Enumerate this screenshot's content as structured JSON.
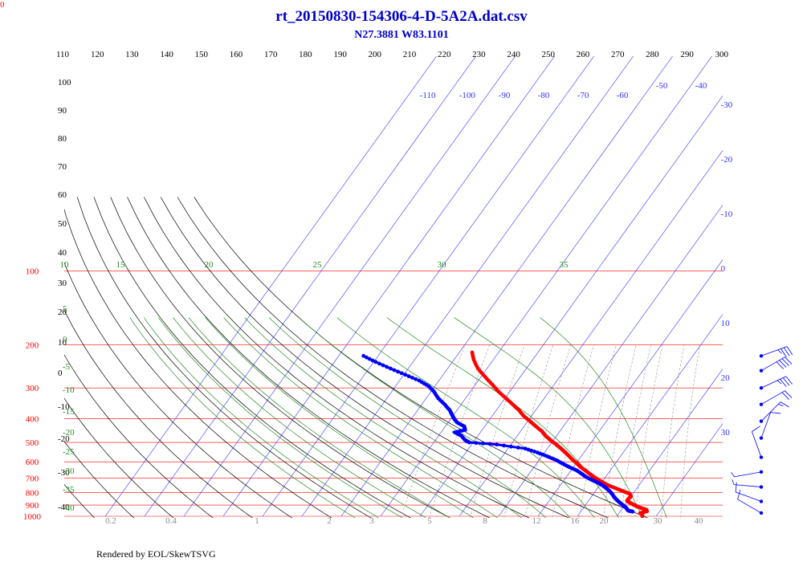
{
  "chart_data": {
    "type": "skew-t",
    "title": "rt_20150830-154306-4-D-5A2A.dat.csv",
    "subtitle": "N27.3881 W83.1101",
    "footer": "Rendered by EOL/SkewTSVG",
    "corner_label": "0",
    "pressure_ticks": [
      {
        "p": 100,
        "label": "100"
      },
      {
        "p": 200,
        "label": "200"
      },
      {
        "p": 300,
        "label": "300"
      },
      {
        "p": 400,
        "label": "400"
      },
      {
        "p": 500,
        "label": "500"
      },
      {
        "p": 600,
        "label": "600"
      },
      {
        "p": 700,
        "label": "700"
      },
      {
        "p": 800,
        "label": "800"
      },
      {
        "p": 900,
        "label": "900"
      },
      {
        "p": 1000,
        "label": "1000"
      }
    ],
    "isotherms": [
      {
        "t": -110,
        "label": "-110"
      },
      {
        "t": -100,
        "label": "-100"
      },
      {
        "t": -90,
        "label": "-90"
      },
      {
        "t": -80,
        "label": "-80"
      },
      {
        "t": -70,
        "label": "-70"
      },
      {
        "t": -60,
        "label": "-60"
      },
      {
        "t": -50,
        "label": "-50"
      },
      {
        "t": -40,
        "label": "-40"
      },
      {
        "t": -30,
        "label": "-30"
      },
      {
        "t": -20,
        "label": "-20"
      },
      {
        "t": -10,
        "label": "-10"
      },
      {
        "t": 0,
        "label": "0"
      },
      {
        "t": 10,
        "label": "10"
      },
      {
        "t": 20,
        "label": "20"
      },
      {
        "t": 30,
        "label": "30"
      }
    ],
    "dry_adiabats": [
      {
        "theta": 110,
        "label": "110"
      },
      {
        "theta": 120,
        "label": "120"
      },
      {
        "theta": 130,
        "label": "130"
      },
      {
        "theta": 140,
        "label": "140"
      },
      {
        "theta": 150,
        "label": "150"
      },
      {
        "theta": 160,
        "label": "160"
      },
      {
        "theta": 170,
        "label": "170"
      },
      {
        "theta": 180,
        "label": "180"
      },
      {
        "theta": 190,
        "label": "190"
      },
      {
        "theta": 200,
        "label": "200"
      },
      {
        "theta": 210,
        "label": "210"
      },
      {
        "theta": 220,
        "label": "220"
      },
      {
        "theta": 230,
        "label": "230"
      },
      {
        "theta": 240,
        "label": "240"
      },
      {
        "theta": 250,
        "label": "250"
      },
      {
        "theta": 260,
        "label": "260"
      },
      {
        "theta": 270,
        "label": "270"
      },
      {
        "theta": 280,
        "label": "280"
      },
      {
        "theta": 290,
        "label": "290"
      },
      {
        "theta": 300,
        "label": "300"
      }
    ],
    "left_adiabat_labels": [
      "100",
      "90",
      "80",
      "70",
      "60",
      "50",
      "40",
      "30",
      "20",
      "10",
      "0",
      "-10",
      "-20",
      "-30",
      "-40"
    ],
    "moist_adiabats": [
      {
        "thetae": 10,
        "label": "10"
      },
      {
        "thetae": 15,
        "label": "15"
      },
      {
        "thetae": 20,
        "label": "20"
      },
      {
        "thetae": 25,
        "label": "25"
      },
      {
        "thetae": 30,
        "label": "30"
      },
      {
        "thetae": 35,
        "label": "35"
      }
    ],
    "moist_left_labels": [
      "5",
      "0",
      "-5",
      "-10",
      "-15",
      "-20",
      "-25",
      "-30",
      "-35",
      "-40"
    ],
    "mixing_ratios": [
      {
        "w": 0.2,
        "label": "0.2"
      },
      {
        "w": 0.4,
        "label": "0.4"
      },
      {
        "w": 1,
        "label": "1"
      },
      {
        "w": 2,
        "label": "2"
      },
      {
        "w": 3,
        "label": "3"
      },
      {
        "w": 5,
        "label": "5"
      },
      {
        "w": 8,
        "label": "8"
      },
      {
        "w": 12,
        "label": "12"
      },
      {
        "w": 16,
        "label": "16"
      },
      {
        "w": 20,
        "label": "20"
      },
      {
        "w": 30,
        "label": "30"
      },
      {
        "w": 40,
        "label": "40"
      }
    ],
    "temperature": [
      {
        "p": 1000,
        "t": 26.5
      },
      {
        "p": 985,
        "t": 26.2
      },
      {
        "p": 970,
        "t": 25.4
      },
      {
        "p": 955,
        "t": 26.8
      },
      {
        "p": 940,
        "t": 26.3
      },
      {
        "p": 925,
        "t": 24.6
      },
      {
        "p": 910,
        "t": 23.2
      },
      {
        "p": 895,
        "t": 22.0
      },
      {
        "p": 880,
        "t": 20.8
      },
      {
        "p": 865,
        "t": 19.8
      },
      {
        "p": 850,
        "t": 19.8
      },
      {
        "p": 830,
        "t": 20.0
      },
      {
        "p": 810,
        "t": 19.2
      },
      {
        "p": 790,
        "t": 17.0
      },
      {
        "p": 770,
        "t": 14.7
      },
      {
        "p": 750,
        "t": 12.4
      },
      {
        "p": 730,
        "t": 10.5
      },
      {
        "p": 710,
        "t": 8.6
      },
      {
        "p": 690,
        "t": 6.9
      },
      {
        "p": 670,
        "t": 5.2
      },
      {
        "p": 650,
        "t": 3.6
      },
      {
        "p": 630,
        "t": 1.8
      },
      {
        "p": 610,
        "t": 0.3
      },
      {
        "p": 590,
        "t": -1.4
      },
      {
        "p": 570,
        "t": -3.0
      },
      {
        "p": 550,
        "t": -4.7
      },
      {
        "p": 530,
        "t": -6.5
      },
      {
        "p": 510,
        "t": -8.5
      },
      {
        "p": 490,
        "t": -10.7
      },
      {
        "p": 470,
        "t": -12.8
      },
      {
        "p": 450,
        "t": -14.6
      },
      {
        "p": 430,
        "t": -17.0
      },
      {
        "p": 410,
        "t": -19.4
      },
      {
        "p": 390,
        "t": -22.0
      },
      {
        "p": 370,
        "t": -24.2
      },
      {
        "p": 350,
        "t": -26.9
      },
      {
        "p": 330,
        "t": -29.8
      },
      {
        "p": 310,
        "t": -32.9
      },
      {
        "p": 290,
        "t": -35.8
      },
      {
        "p": 270,
        "t": -39.0
      },
      {
        "p": 250,
        "t": -42.3
      },
      {
        "p": 230,
        "t": -45.0
      },
      {
        "p": 215,
        "t": -46.7
      }
    ],
    "dewpoint": [
      {
        "p": 957,
        "t": 23.2
      },
      {
        "p": 950,
        "t": 22.0
      },
      {
        "p": 940,
        "t": 21.5
      },
      {
        "p": 925,
        "t": 20.9
      },
      {
        "p": 900,
        "t": 19.5
      },
      {
        "p": 875,
        "t": 18.0
      },
      {
        "p": 850,
        "t": 16.6
      },
      {
        "p": 830,
        "t": 15.6
      },
      {
        "p": 810,
        "t": 14.7
      },
      {
        "p": 790,
        "t": 13.6
      },
      {
        "p": 770,
        "t": 12.3
      },
      {
        "p": 750,
        "t": 10.9
      },
      {
        "p": 730,
        "t": 9.1
      },
      {
        "p": 710,
        "t": 6.9
      },
      {
        "p": 690,
        "t": 4.9
      },
      {
        "p": 670,
        "t": 3.2
      },
      {
        "p": 650,
        "t": 1.4
      },
      {
        "p": 630,
        "t": -1.1
      },
      {
        "p": 610,
        "t": -3.4
      },
      {
        "p": 590,
        "t": -5.7
      },
      {
        "p": 570,
        "t": -8.6
      },
      {
        "p": 550,
        "t": -11.8
      },
      {
        "p": 530,
        "t": -15.6
      },
      {
        "p": 510,
        "t": -23.6
      },
      {
        "p": 500,
        "t": -31.0
      },
      {
        "p": 490,
        "t": -32.4
      },
      {
        "p": 470,
        "t": -34.2
      },
      {
        "p": 455,
        "t": -36.5
      },
      {
        "p": 445,
        "t": -34.3
      },
      {
        "p": 430,
        "t": -35.2
      },
      {
        "p": 415,
        "t": -37.7
      },
      {
        "p": 400,
        "t": -39.2
      },
      {
        "p": 385,
        "t": -40.5
      },
      {
        "p": 370,
        "t": -41.8
      },
      {
        "p": 350,
        "t": -44.2
      },
      {
        "p": 330,
        "t": -47.0
      },
      {
        "p": 310,
        "t": -49.3
      },
      {
        "p": 295,
        "t": -51.6
      },
      {
        "p": 280,
        "t": -55.0
      },
      {
        "p": 265,
        "t": -59.6
      },
      {
        "p": 250,
        "t": -64.5
      },
      {
        "p": 235,
        "t": -69.5
      },
      {
        "p": 222,
        "t": -73.7
      }
    ],
    "wind_barbs": [
      {
        "p": 222,
        "dir": 250,
        "speed": 35
      },
      {
        "p": 255,
        "dir": 240,
        "speed": 40
      },
      {
        "p": 300,
        "dir": 245,
        "speed": 35
      },
      {
        "p": 350,
        "dir": 240,
        "speed": 20
      },
      {
        "p": 410,
        "dir": 225,
        "speed": 15
      },
      {
        "p": 480,
        "dir": 200,
        "speed": 10
      },
      {
        "p": 575,
        "dir": 160,
        "speed": 10
      },
      {
        "p": 660,
        "dir": 80,
        "speed": 5
      },
      {
        "p": 760,
        "dir": 95,
        "speed": 5
      },
      {
        "p": 870,
        "dir": 110,
        "speed": 10
      },
      {
        "p": 970,
        "dir": 120,
        "speed": 10
      }
    ]
  }
}
